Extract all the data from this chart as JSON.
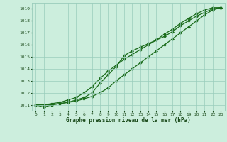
{
  "title": "Graphe pression niveau de la mer (hPa)",
  "x": [
    0,
    1,
    2,
    3,
    4,
    5,
    6,
    7,
    8,
    9,
    10,
    11,
    12,
    13,
    14,
    15,
    16,
    17,
    18,
    19,
    20,
    21,
    22,
    23
  ],
  "line1": [
    1011.0,
    1011.0,
    1011.0,
    1011.1,
    1011.2,
    1011.3,
    1011.5,
    1011.7,
    1012.0,
    1012.4,
    1013.0,
    1013.5,
    1014.0,
    1014.5,
    1015.0,
    1015.5,
    1016.0,
    1016.5,
    1017.0,
    1017.5,
    1018.0,
    1018.5,
    1018.9,
    1019.1
  ],
  "line2": [
    1011.0,
    1010.8,
    1011.0,
    1011.1,
    1011.2,
    1011.4,
    1011.6,
    1012.0,
    1012.8,
    1013.5,
    1014.2,
    1015.1,
    1015.5,
    1015.8,
    1016.1,
    1016.4,
    1016.7,
    1017.1,
    1017.6,
    1018.0,
    1018.4,
    1018.7,
    1019.0,
    1019.1
  ],
  "line3": [
    1011.0,
    1011.0,
    1011.1,
    1011.2,
    1011.4,
    1011.6,
    1012.0,
    1012.5,
    1013.2,
    1013.8,
    1014.3,
    1014.8,
    1015.2,
    1015.6,
    1016.0,
    1016.4,
    1016.9,
    1017.3,
    1017.8,
    1018.2,
    1018.6,
    1018.9,
    1019.1,
    1019.1
  ],
  "ylim": [
    1010.5,
    1019.5
  ],
  "yticks": [
    1011,
    1012,
    1013,
    1014,
    1015,
    1016,
    1017,
    1018,
    1019
  ],
  "xlim": [
    -0.5,
    23.5
  ],
  "line_color": "#1a6b1a",
  "bg_color": "#cceedd",
  "grid_color": "#99ccbb",
  "title_color": "#1a4a1a",
  "marker": "D",
  "marker_size": 2.0,
  "linewidth": 0.9,
  "figwidth": 3.2,
  "figheight": 2.0,
  "dpi": 100
}
